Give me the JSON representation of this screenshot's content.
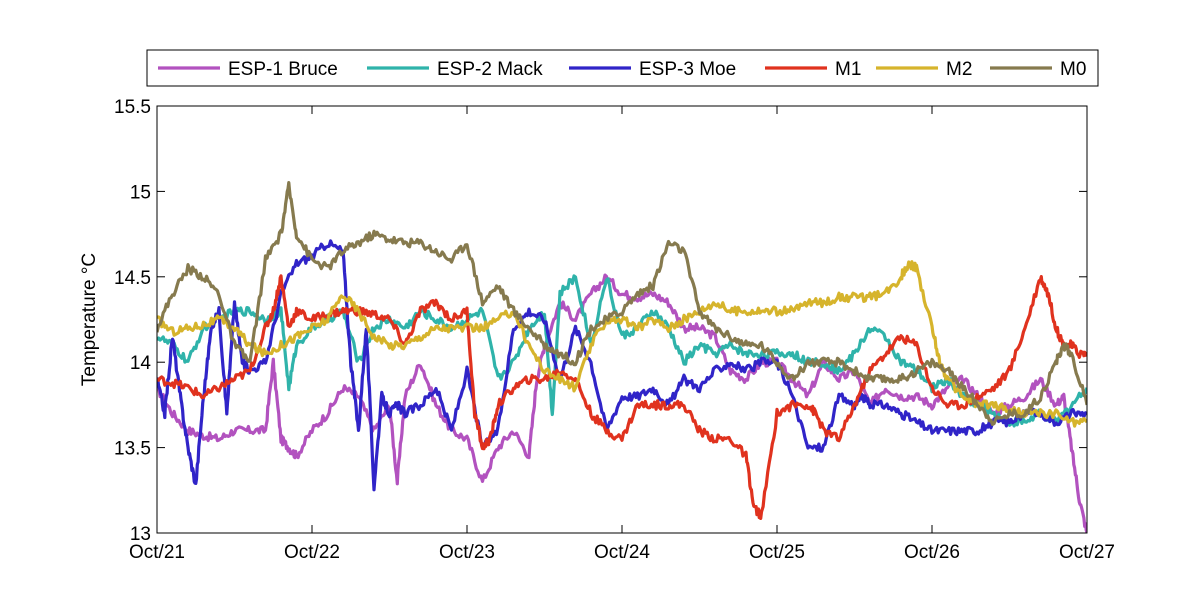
{
  "chart_data": {
    "type": "line",
    "title": "",
    "xlabel": "",
    "ylabel": "Temperature °C",
    "x_ticks": [
      "Oct/21",
      "Oct/22",
      "Oct/23",
      "Oct/24",
      "Oct/25",
      "Oct/26",
      "Oct/27"
    ],
    "x_unit": "days",
    "xlim": [
      0,
      6
    ],
    "ylim": [
      13,
      15.5
    ],
    "y_ticks": [
      "13",
      "13.5",
      "14",
      "14.5",
      "15",
      "15.5"
    ],
    "grid": false,
    "legend_position": "top",
    "series": [
      {
        "name": "ESP-1 Bruce",
        "color": "#b252bf",
        "x": [
          0,
          0.1,
          0.2,
          0.3,
          0.4,
          0.5,
          0.6,
          0.7,
          0.75,
          0.8,
          0.85,
          0.9,
          1.0,
          1.1,
          1.2,
          1.3,
          1.4,
          1.5,
          1.55,
          1.6,
          1.7,
          1.8,
          1.9,
          2.0,
          2.1,
          2.2,
          2.3,
          2.4,
          2.45,
          2.5,
          2.6,
          2.7,
          2.8,
          2.9,
          3.0,
          3.1,
          3.2,
          3.3,
          3.4,
          3.5,
          3.6,
          3.7,
          3.8,
          3.9,
          4.0,
          4.1,
          4.2,
          4.3,
          4.4,
          4.5,
          4.6,
          4.7,
          4.8,
          4.9,
          5.0,
          5.1,
          5.2,
          5.3,
          5.4,
          5.5,
          5.6,
          5.7,
          5.8,
          5.85,
          5.9,
          5.95,
          6.0
        ],
        "y": [
          13.85,
          13.7,
          13.6,
          13.57,
          13.55,
          13.6,
          13.6,
          13.6,
          14.0,
          13.55,
          13.5,
          13.45,
          13.6,
          13.7,
          13.85,
          13.8,
          13.6,
          13.75,
          13.3,
          13.8,
          14.0,
          13.75,
          13.6,
          13.55,
          13.3,
          13.5,
          13.6,
          13.45,
          13.9,
          14.1,
          14.35,
          14.25,
          14.4,
          14.5,
          14.4,
          14.38,
          14.4,
          14.35,
          14.2,
          14.2,
          14.15,
          13.95,
          13.9,
          14.0,
          14.0,
          13.9,
          13.8,
          14.0,
          13.9,
          13.95,
          13.75,
          13.85,
          13.8,
          13.8,
          13.75,
          13.85,
          13.9,
          13.8,
          13.7,
          13.75,
          13.8,
          13.9,
          13.75,
          13.8,
          13.5,
          13.2,
          13.0
        ]
      },
      {
        "name": "ESP-2 Mack",
        "color": "#2fb3aa",
        "x": [
          0,
          0.1,
          0.2,
          0.3,
          0.4,
          0.5,
          0.6,
          0.7,
          0.8,
          0.85,
          0.9,
          1.0,
          1.1,
          1.2,
          1.3,
          1.4,
          1.5,
          1.6,
          1.7,
          1.8,
          1.9,
          2.0,
          2.1,
          2.2,
          2.3,
          2.4,
          2.5,
          2.55,
          2.6,
          2.7,
          2.8,
          2.9,
          3.0,
          3.1,
          3.2,
          3.3,
          3.4,
          3.5,
          3.6,
          3.7,
          3.8,
          3.9,
          4.0,
          4.1,
          4.2,
          4.3,
          4.4,
          4.5,
          4.6,
          4.7,
          4.8,
          4.9,
          5.0,
          5.1,
          5.2,
          5.3,
          5.4,
          5.5,
          5.6,
          5.7,
          5.8,
          5.9,
          6.0
        ],
        "y": [
          14.15,
          14.1,
          14.0,
          14.2,
          14.25,
          14.3,
          14.3,
          14.25,
          14.3,
          13.85,
          14.1,
          14.2,
          14.25,
          14.3,
          14.0,
          14.2,
          14.25,
          14.2,
          14.3,
          14.25,
          14.2,
          14.25,
          14.3,
          13.9,
          14.0,
          14.2,
          14.3,
          13.7,
          14.4,
          14.5,
          14.1,
          14.5,
          14.15,
          14.2,
          14.3,
          14.2,
          14.0,
          14.1,
          14.05,
          14.1,
          14.05,
          14.05,
          14.05,
          14.05,
          14.0,
          14.0,
          13.95,
          14.05,
          14.2,
          14.15,
          14.0,
          13.95,
          13.85,
          13.9,
          13.8,
          13.75,
          13.7,
          13.65,
          13.65,
          13.7,
          13.65,
          13.75,
          13.85
        ]
      },
      {
        "name": "ESP-3 Moe",
        "color": "#3024c8",
        "x": [
          0,
          0.05,
          0.1,
          0.15,
          0.2,
          0.25,
          0.3,
          0.35,
          0.4,
          0.45,
          0.5,
          0.55,
          0.6,
          0.7,
          0.8,
          0.9,
          1.0,
          1.1,
          1.2,
          1.25,
          1.3,
          1.35,
          1.4,
          1.45,
          1.5,
          1.55,
          1.6,
          1.7,
          1.8,
          1.9,
          2.0,
          2.1,
          2.2,
          2.3,
          2.4,
          2.5,
          2.6,
          2.7,
          2.8,
          2.9,
          3.0,
          3.1,
          3.2,
          3.3,
          3.4,
          3.5,
          3.6,
          3.7,
          3.8,
          3.9,
          4.0,
          4.1,
          4.2,
          4.3,
          4.4,
          4.5,
          4.55,
          4.6,
          4.7,
          4.8,
          4.9,
          5.0,
          5.1,
          5.2,
          5.3,
          5.4,
          5.5,
          5.6,
          5.7,
          5.8,
          5.9,
          6.0
        ],
        "y": [
          13.9,
          13.7,
          14.15,
          13.8,
          13.5,
          13.28,
          13.8,
          14.2,
          14.3,
          13.7,
          14.35,
          14.0,
          13.95,
          14.0,
          14.4,
          14.58,
          14.62,
          14.7,
          14.65,
          14.0,
          13.6,
          14.2,
          13.27,
          13.8,
          13.7,
          13.75,
          13.7,
          13.75,
          13.85,
          13.6,
          13.95,
          13.5,
          13.6,
          14.2,
          14.3,
          14.25,
          13.9,
          14.2,
          14.0,
          13.6,
          13.8,
          13.8,
          13.85,
          13.75,
          13.9,
          13.85,
          13.95,
          14.0,
          13.95,
          14.0,
          14.0,
          13.8,
          13.5,
          13.5,
          13.8,
          13.75,
          13.8,
          13.75,
          13.75,
          13.7,
          13.65,
          13.6,
          13.6,
          13.6,
          13.6,
          13.65,
          13.65,
          13.7,
          13.7,
          13.65,
          13.7,
          13.7
        ]
      },
      {
        "name": "M1",
        "color": "#e0321e",
        "x": [
          0,
          0.1,
          0.2,
          0.3,
          0.4,
          0.5,
          0.6,
          0.7,
          0.75,
          0.8,
          0.85,
          0.9,
          1.0,
          1.1,
          1.2,
          1.3,
          1.4,
          1.5,
          1.6,
          1.7,
          1.8,
          1.9,
          2.0,
          2.05,
          2.1,
          2.15,
          2.2,
          2.3,
          2.4,
          2.5,
          2.6,
          2.7,
          2.8,
          2.9,
          3.0,
          3.1,
          3.2,
          3.3,
          3.4,
          3.5,
          3.6,
          3.7,
          3.8,
          3.85,
          3.9,
          4.0,
          4.1,
          4.2,
          4.25,
          4.3,
          4.4,
          4.5,
          4.6,
          4.7,
          4.8,
          4.9,
          5.0,
          5.1,
          5.2,
          5.3,
          5.4,
          5.5,
          5.6,
          5.7,
          5.75,
          5.8,
          5.85,
          5.9,
          5.95,
          6.0
        ],
        "y": [
          13.9,
          13.88,
          13.85,
          13.8,
          13.85,
          13.9,
          13.95,
          14.2,
          14.3,
          14.5,
          14.2,
          14.3,
          14.25,
          14.28,
          14.3,
          14.3,
          14.28,
          14.25,
          14.1,
          14.3,
          14.35,
          14.25,
          14.3,
          13.7,
          13.5,
          13.55,
          13.75,
          13.85,
          13.9,
          13.9,
          13.95,
          13.9,
          13.7,
          13.6,
          13.55,
          13.75,
          13.75,
          13.75,
          13.75,
          13.6,
          13.55,
          13.55,
          13.45,
          13.15,
          13.1,
          13.7,
          13.75,
          13.75,
          13.7,
          13.6,
          13.55,
          13.75,
          13.95,
          14.05,
          14.15,
          14.1,
          13.85,
          13.75,
          13.75,
          13.8,
          13.85,
          13.95,
          14.2,
          14.5,
          14.4,
          14.2,
          14.1,
          14.1,
          14.05,
          14.05
        ]
      },
      {
        "name": "M2",
        "color": "#d6b42c",
        "x": [
          0,
          0.1,
          0.2,
          0.3,
          0.4,
          0.5,
          0.6,
          0.7,
          0.8,
          0.9,
          1.0,
          1.1,
          1.2,
          1.3,
          1.4,
          1.5,
          1.6,
          1.7,
          1.8,
          1.9,
          2.0,
          2.1,
          2.2,
          2.3,
          2.4,
          2.5,
          2.6,
          2.7,
          2.8,
          2.9,
          3.0,
          3.1,
          3.2,
          3.3,
          3.4,
          3.5,
          3.6,
          3.7,
          3.8,
          3.9,
          4.0,
          4.1,
          4.2,
          4.3,
          4.4,
          4.5,
          4.6,
          4.7,
          4.8,
          4.85,
          4.9,
          5.0,
          5.05,
          5.1,
          5.2,
          5.3,
          5.4,
          5.5,
          5.6,
          5.7,
          5.8,
          5.9,
          6.0
        ],
        "y": [
          14.25,
          14.18,
          14.2,
          14.22,
          14.25,
          14.2,
          14.1,
          14.05,
          14.1,
          14.15,
          14.2,
          14.25,
          14.4,
          14.3,
          14.15,
          14.1,
          14.1,
          14.15,
          14.2,
          14.2,
          14.2,
          14.2,
          14.25,
          14.3,
          14.1,
          13.95,
          13.9,
          13.85,
          14.1,
          14.25,
          14.25,
          14.2,
          14.25,
          14.2,
          14.25,
          14.3,
          14.35,
          14.3,
          14.3,
          14.3,
          14.3,
          14.3,
          14.35,
          14.35,
          14.38,
          14.38,
          14.38,
          14.4,
          14.5,
          14.58,
          14.55,
          14.2,
          14.0,
          13.9,
          13.8,
          13.75,
          13.75,
          13.72,
          13.7,
          13.7,
          13.7,
          13.65,
          13.65
        ]
      },
      {
        "name": "M0",
        "color": "#867a4e",
        "x": [
          0,
          0.1,
          0.2,
          0.3,
          0.4,
          0.5,
          0.6,
          0.7,
          0.8,
          0.85,
          0.9,
          1.0,
          1.1,
          1.2,
          1.3,
          1.4,
          1.5,
          1.6,
          1.7,
          1.8,
          1.9,
          2.0,
          2.1,
          2.2,
          2.3,
          2.4,
          2.5,
          2.6,
          2.7,
          2.8,
          2.9,
          3.0,
          3.1,
          3.2,
          3.3,
          3.4,
          3.5,
          3.6,
          3.7,
          3.8,
          3.9,
          4.0,
          4.1,
          4.2,
          4.3,
          4.4,
          4.5,
          4.6,
          4.7,
          4.8,
          4.9,
          5.0,
          5.1,
          5.2,
          5.3,
          5.4,
          5.5,
          5.6,
          5.7,
          5.8,
          5.85,
          5.9,
          6.0
        ],
        "y": [
          14.2,
          14.4,
          14.55,
          14.5,
          14.4,
          14.1,
          14.0,
          14.6,
          14.75,
          15.03,
          14.75,
          14.6,
          14.55,
          14.65,
          14.7,
          14.75,
          14.72,
          14.7,
          14.7,
          14.65,
          14.6,
          14.7,
          14.35,
          14.45,
          14.3,
          14.2,
          14.1,
          14.05,
          14.0,
          14.2,
          14.25,
          14.3,
          14.4,
          14.45,
          14.7,
          14.65,
          14.3,
          14.2,
          14.15,
          14.1,
          14.1,
          14.0,
          13.9,
          14.0,
          14.0,
          14.0,
          13.95,
          13.9,
          13.9,
          13.9,
          13.95,
          14.0,
          13.95,
          13.85,
          13.75,
          13.65,
          13.7,
          13.7,
          13.8,
          14.0,
          14.1,
          14.05,
          13.75
        ]
      }
    ]
  }
}
